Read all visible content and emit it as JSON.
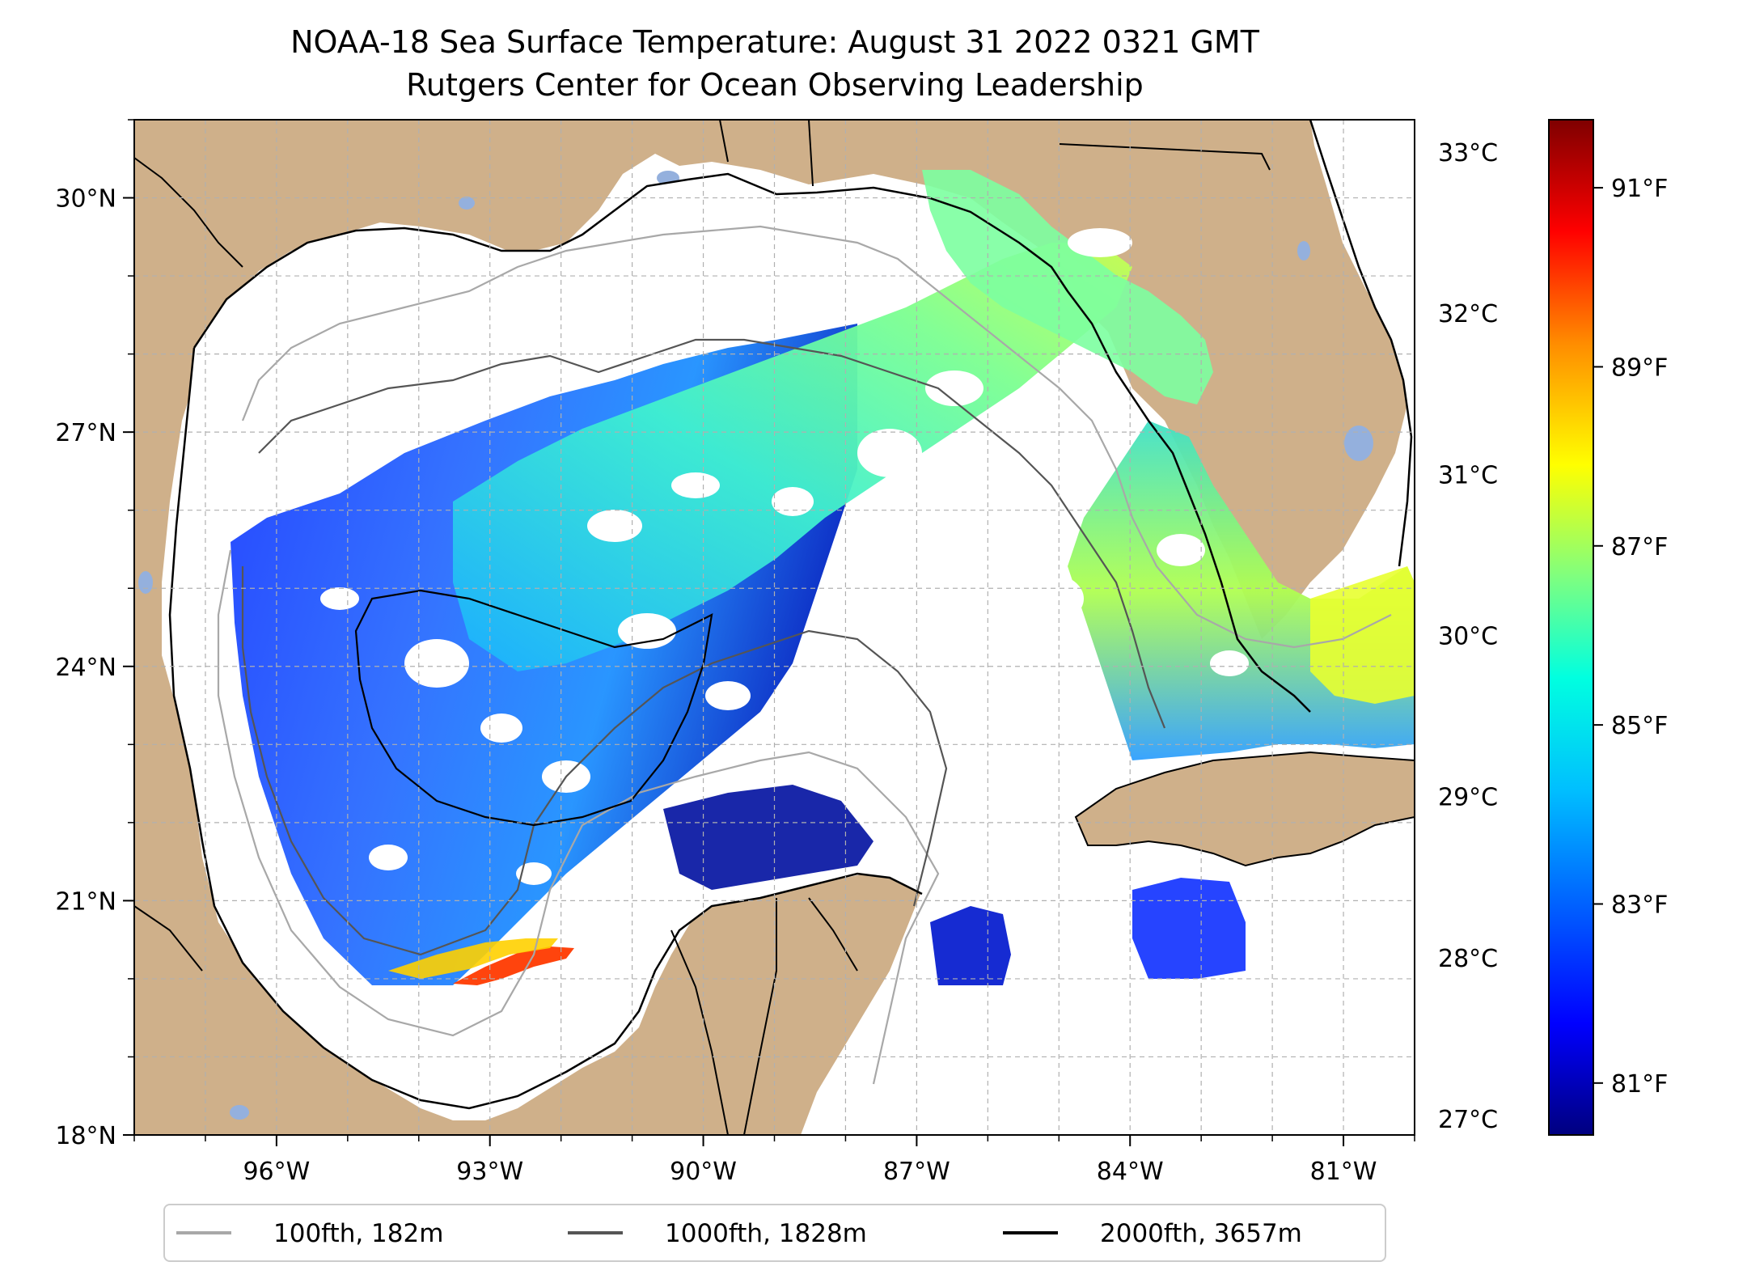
{
  "title": {
    "line1": "NOAA-18 Sea Surface Temperature: August 31 2022 0321 GMT",
    "line2": "Rutgers Center for Ocean Observing Leadership"
  },
  "map": {
    "lon_range": [
      -98.0,
      -80.0
    ],
    "lat_range": [
      18.0,
      31.0
    ],
    "lon_ticks": [
      {
        "value": -96,
        "label": "96°W"
      },
      {
        "value": -93,
        "label": "93°W"
      },
      {
        "value": -90,
        "label": "90°W"
      },
      {
        "value": -87,
        "label": "87°W"
      },
      {
        "value": -84,
        "label": "84°W"
      },
      {
        "value": -81,
        "label": "81°W"
      }
    ],
    "lat_ticks": [
      {
        "value": 30,
        "label": "30°N"
      },
      {
        "value": 27,
        "label": "27°N"
      },
      {
        "value": 24,
        "label": "24°N"
      },
      {
        "value": 21,
        "label": "21°N"
      },
      {
        "value": 18,
        "label": "18°N"
      }
    ],
    "colors": {
      "land": "#cfb08a",
      "water_body": "#94b0dd",
      "grid": "#b0b0b0",
      "ocean": "#ffffff"
    }
  },
  "legend": {
    "items": [
      {
        "label": "100fth, 182m",
        "color": "#a8a8a8"
      },
      {
        "label": "1000fth, 1828m",
        "color": "#555555"
      },
      {
        "label": "2000fth, 3657m",
        "color": "#000000"
      }
    ]
  },
  "colorbar": {
    "celsius_range": [
      26.9,
      33.2
    ],
    "celsius_ticks": [
      {
        "value": 33,
        "label": "33°C"
      },
      {
        "value": 32,
        "label": "32°C"
      },
      {
        "value": 31,
        "label": "31°C"
      },
      {
        "value": 30,
        "label": "30°C"
      },
      {
        "value": 29,
        "label": "29°C"
      },
      {
        "value": 28,
        "label": "28°C"
      },
      {
        "value": 27,
        "label": "27°C"
      }
    ],
    "fahrenheit_ticks": [
      {
        "value": 91,
        "label": "91°F"
      },
      {
        "value": 89,
        "label": "89°F"
      },
      {
        "value": 87,
        "label": "87°F"
      },
      {
        "value": 85,
        "label": "85°F"
      },
      {
        "value": 83,
        "label": "83°F"
      },
      {
        "value": 81,
        "label": "81°F"
      }
    ],
    "stops": [
      "#00007f",
      "#0000ff",
      "#007fff",
      "#00ffff",
      "#7fff7f",
      "#ffff00",
      "#ff7f00",
      "#ff0000",
      "#7f0000"
    ]
  }
}
